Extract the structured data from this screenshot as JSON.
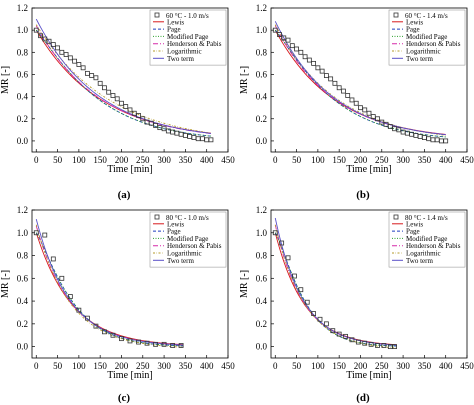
{
  "colors": {
    "lewis": "#d7191c",
    "page": "#1f3fbf",
    "modified_page": "#2ca02c",
    "henderson_pabis": "#d62aa9",
    "logarithmic": "#b59b2b",
    "two_term": "#5a50c8",
    "experimental": "#333333"
  },
  "legend_series": [
    "Lewis",
    "Page",
    "Modified Page",
    "Henderson & Pabis",
    "Logarithmic",
    "Two term"
  ],
  "chart_data": [
    {
      "type": "line",
      "panel_label": "(a)",
      "title": "",
      "legend_title": "60 °C - 1.0 m/s",
      "xlabel": "Time [min]",
      "ylabel": "MR [-]",
      "xlim": [
        -10,
        450
      ],
      "ylim": [
        -0.1,
        1.2
      ],
      "xticks": [
        "0",
        "50",
        "100",
        "150",
        "200",
        "250",
        "300",
        "350",
        "400",
        "450"
      ],
      "yticks": [
        "0.0",
        "0.2",
        "0.4",
        "0.6",
        "0.8",
        "1.0",
        "1.2"
      ],
      "legend_position": "top-right",
      "experimental": {
        "x": [
          0,
          10,
          20,
          30,
          40,
          50,
          60,
          70,
          80,
          90,
          100,
          110,
          120,
          130,
          140,
          150,
          160,
          170,
          180,
          190,
          200,
          210,
          220,
          230,
          240,
          250,
          260,
          270,
          280,
          290,
          300,
          310,
          320,
          330,
          340,
          350,
          360,
          370,
          380,
          390,
          400,
          410
        ],
        "y": [
          1.0,
          0.95,
          0.92,
          0.9,
          0.87,
          0.84,
          0.8,
          0.78,
          0.75,
          0.72,
          0.69,
          0.66,
          0.61,
          0.59,
          0.57,
          0.52,
          0.48,
          0.44,
          0.41,
          0.38,
          0.34,
          0.31,
          0.28,
          0.25,
          0.23,
          0.2,
          0.17,
          0.16,
          0.14,
          0.12,
          0.11,
          0.09,
          0.08,
          0.07,
          0.06,
          0.05,
          0.04,
          0.03,
          0.02,
          0.02,
          0.01,
          0.01
        ]
      },
      "models": {
        "lewis": {
          "a": 1.0,
          "k": 0.0065,
          "n": 1.0,
          "c": 0,
          "x_end": 410
        },
        "page": {
          "a": 1.0,
          "k": 0.0035,
          "n": 1.13,
          "c": 0,
          "x_end": 410
        },
        "modified_page": {
          "a": 1.0,
          "k": 0.0035,
          "n": 1.13,
          "c": 0,
          "x_end": 410
        },
        "henderson_pabis": {
          "a": 1.04,
          "k": 0.0067,
          "n": 1.0,
          "c": 0,
          "x_end": 410
        },
        "logarithmic": {
          "a": 1.08,
          "k": 0.0058,
          "n": 1.0,
          "c": -0.03,
          "x_end": 410
        },
        "two_term": {
          "a": 1.1,
          "k": 0.0068,
          "n": 1.0,
          "c": 0,
          "x_end": 410
        }
      }
    },
    {
      "type": "line",
      "panel_label": "(b)",
      "title": "",
      "legend_title": "60 °C - 1.4 m/s",
      "xlabel": "Time [min]",
      "ylabel": "MR [-]",
      "xlim": [
        -10,
        450
      ],
      "ylim": [
        -0.1,
        1.2
      ],
      "xticks": [
        "0",
        "50",
        "100",
        "150",
        "200",
        "250",
        "300",
        "350",
        "400",
        "450"
      ],
      "yticks": [
        "0.0",
        "0.2",
        "0.4",
        "0.6",
        "0.8",
        "1.0",
        "1.2"
      ],
      "legend_position": "top-right",
      "experimental": {
        "x": [
          0,
          10,
          20,
          30,
          40,
          50,
          60,
          70,
          80,
          90,
          100,
          110,
          120,
          130,
          140,
          150,
          160,
          170,
          180,
          190,
          200,
          210,
          220,
          230,
          240,
          250,
          260,
          270,
          280,
          290,
          300,
          310,
          320,
          330,
          340,
          350,
          360,
          370,
          380,
          390,
          400
        ],
        "y": [
          1.0,
          0.96,
          0.93,
          0.91,
          0.86,
          0.83,
          0.8,
          0.76,
          0.73,
          0.7,
          0.66,
          0.63,
          0.59,
          0.56,
          0.52,
          0.48,
          0.45,
          0.41,
          0.37,
          0.34,
          0.3,
          0.28,
          0.25,
          0.22,
          0.2,
          0.17,
          0.15,
          0.13,
          0.11,
          0.1,
          0.08,
          0.07,
          0.06,
          0.05,
          0.04,
          0.03,
          0.02,
          0.01,
          0.01,
          0.0,
          0.0
        ]
      },
      "models": {
        "lewis": {
          "a": 1.0,
          "k": 0.0071,
          "n": 1.0,
          "c": 0,
          "x_end": 400
        },
        "page": {
          "a": 1.0,
          "k": 0.0036,
          "n": 1.14,
          "c": 0,
          "x_end": 400
        },
        "modified_page": {
          "a": 1.0,
          "k": 0.0036,
          "n": 1.14,
          "c": 0,
          "x_end": 400
        },
        "henderson_pabis": {
          "a": 1.04,
          "k": 0.0073,
          "n": 1.0,
          "c": 0,
          "x_end": 400
        },
        "logarithmic": {
          "a": 1.07,
          "k": 0.0068,
          "n": 1.0,
          "c": -0.02,
          "x_end": 400
        },
        "two_term": {
          "a": 1.08,
          "k": 0.0074,
          "n": 1.0,
          "c": 0,
          "x_end": 400
        }
      }
    },
    {
      "type": "line",
      "panel_label": "(c)",
      "title": "",
      "legend_title": "80 °C - 1.0 m/s",
      "xlabel": "Time [min]",
      "ylabel": "MR [-]",
      "xlim": [
        -10,
        450
      ],
      "ylim": [
        -0.1,
        1.2
      ],
      "xticks": [
        "0",
        "50",
        "100",
        "150",
        "200",
        "250",
        "300",
        "350",
        "400",
        "450"
      ],
      "yticks": [
        "0.0",
        "0.2",
        "0.4",
        "0.6",
        "0.8",
        "1.0",
        "1.2"
      ],
      "legend_position": "top-right",
      "experimental": {
        "x": [
          0,
          20,
          40,
          60,
          80,
          100,
          120,
          140,
          160,
          180,
          200,
          220,
          240,
          260,
          280,
          300,
          320,
          340
        ],
        "y": [
          1.0,
          0.98,
          0.77,
          0.6,
          0.44,
          0.32,
          0.25,
          0.18,
          0.13,
          0.1,
          0.07,
          0.05,
          0.04,
          0.03,
          0.02,
          0.02,
          0.01,
          0.01
        ]
      },
      "models": {
        "lewis": {
          "a": 1.0,
          "k": 0.0118,
          "n": 1.0,
          "c": 0,
          "x_end": 345
        },
        "page": {
          "a": 1.0,
          "k": 0.0045,
          "n": 1.2,
          "c": 0,
          "x_end": 345
        },
        "modified_page": {
          "a": 1.0,
          "k": 0.0045,
          "n": 1.2,
          "c": 0,
          "x_end": 345
        },
        "henderson_pabis": {
          "a": 1.06,
          "k": 0.0124,
          "n": 1.0,
          "c": 0,
          "x_end": 345
        },
        "logarithmic": {
          "a": 1.09,
          "k": 0.0125,
          "n": 1.0,
          "c": -0.02,
          "x_end": 345
        },
        "two_term": {
          "a": 1.12,
          "k": 0.0128,
          "n": 1.0,
          "c": 0,
          "x_end": 345
        }
      }
    },
    {
      "type": "line",
      "panel_label": "(d)",
      "title": "",
      "legend_title": "80 °C - 1.4 m/s",
      "xlabel": "Time [min]",
      "ylabel": "MR [-]",
      "xlim": [
        -10,
        450
      ],
      "ylim": [
        -0.1,
        1.2
      ],
      "xticks": [
        "0",
        "50",
        "100",
        "150",
        "200",
        "250",
        "300",
        "350",
        "400",
        "450"
      ],
      "yticks": [
        "0.0",
        "0.2",
        "0.4",
        "0.6",
        "0.8",
        "1.0",
        "1.2"
      ],
      "legend_position": "top-right",
      "experimental": {
        "x": [
          0,
          15,
          30,
          45,
          60,
          75,
          90,
          105,
          120,
          135,
          150,
          165,
          180,
          195,
          210,
          225,
          240,
          255,
          270,
          280
        ],
        "y": [
          1.0,
          0.91,
          0.78,
          0.62,
          0.5,
          0.39,
          0.29,
          0.24,
          0.2,
          0.14,
          0.11,
          0.09,
          0.06,
          0.04,
          0.03,
          0.02,
          0.01,
          0.01,
          0.0,
          0.0
        ]
      },
      "models": {
        "lewis": {
          "a": 1.0,
          "k": 0.0145,
          "n": 1.0,
          "c": 0,
          "x_end": 285
        },
        "page": {
          "a": 1.0,
          "k": 0.0048,
          "n": 1.24,
          "c": 0,
          "x_end": 285
        },
        "modified_page": {
          "a": 1.0,
          "k": 0.0048,
          "n": 1.24,
          "c": 0,
          "x_end": 285
        },
        "henderson_pabis": {
          "a": 1.07,
          "k": 0.0152,
          "n": 1.0,
          "c": 0,
          "x_end": 285
        },
        "logarithmic": {
          "a": 1.1,
          "k": 0.0145,
          "n": 1.0,
          "c": -0.03,
          "x_end": 285
        },
        "two_term": {
          "a": 1.13,
          "k": 0.0155,
          "n": 1.0,
          "c": 0,
          "x_end": 285
        }
      }
    }
  ]
}
